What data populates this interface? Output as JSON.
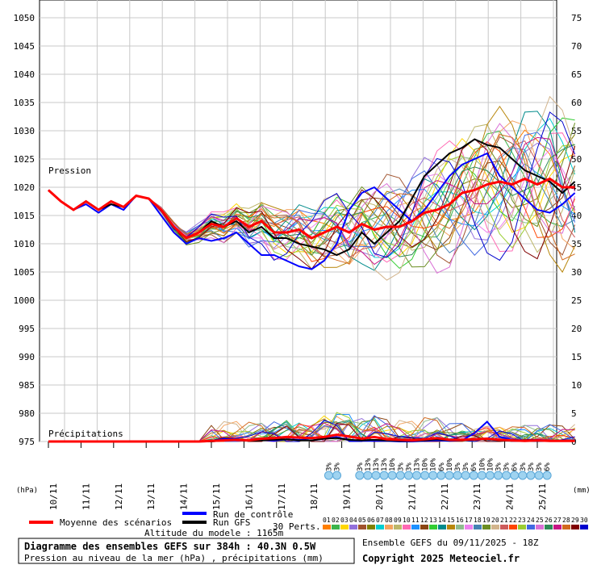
{
  "chart_data": {
    "type": "line",
    "title": "Diagramme des ensembles GEFS sur 384h : 40.3N 0.5W",
    "subtitle": "Pression au niveau de la mer (hPa) , précipitations (mm)",
    "y_left_unit": "(hPa)",
    "y_right_unit": "(mm)",
    "y_left_ticks": [
      975,
      980,
      985,
      990,
      995,
      1000,
      1005,
      1010,
      1015,
      1020,
      1025,
      1030,
      1035,
      1040,
      1045,
      1050
    ],
    "y_right_ticks": [
      0,
      5,
      10,
      15,
      20,
      25,
      30,
      35,
      40,
      45,
      50,
      55,
      60,
      65,
      70,
      75
    ],
    "y_left_range": [
      975,
      1050
    ],
    "y_right_range": [
      0,
      75
    ],
    "x_date_labels": [
      "10/11",
      "11/11",
      "12/11",
      "13/11",
      "14/11",
      "15/11",
      "16/11",
      "17/11",
      "18/11",
      "19/11",
      "20/11",
      "21/11",
      "22/11",
      "23/11",
      "24/11",
      "25/11"
    ],
    "pressure_label": "Pression",
    "precip_label": "Précipitations",
    "grid": true,
    "series": [
      {
        "name": "Moyenne des scénarios",
        "color": "#ff0000",
        "values": [
          1019.5,
          1017.5,
          1016,
          1017.5,
          1016,
          1017.5,
          1016.5,
          1018.5,
          1018,
          1016,
          1013,
          1011,
          1012,
          1013.5,
          1013,
          1014.5,
          1013,
          1014,
          1012,
          1012,
          1012.5,
          1011,
          1012,
          1013,
          1012,
          1013.5,
          1012.5,
          1013,
          1013,
          1014,
          1015.5,
          1016,
          1017,
          1019,
          1019.5,
          1020.5,
          1021,
          1020.5,
          1021.5,
          1020.5,
          1021.5,
          1020,
          1020
        ],
        "precip": [
          0,
          0,
          0,
          0,
          0,
          0,
          0,
          0,
          0,
          0,
          0,
          0,
          0,
          0.1,
          0.2,
          0.3,
          0.2,
          0.5,
          0.6,
          0.8,
          0.7,
          0.6,
          0.8,
          1.2,
          0.9,
          0.5,
          0.8,
          0.4,
          0.3,
          0.2,
          0.4,
          0.6,
          0.3,
          0.3,
          0.4,
          0.5,
          0.3,
          0.2,
          0.1,
          0.2,
          0.1,
          0.1,
          0.1
        ]
      },
      {
        "name": "Run de contrôle",
        "color": "#0000ff",
        "values": [
          1019.5,
          1017.5,
          1016,
          1017,
          1015.5,
          1017,
          1016,
          1018.5,
          1018,
          1015,
          1012,
          1010,
          1011,
          1010.5,
          1011,
          1012,
          1010,
          1008,
          1008,
          1007,
          1006,
          1005.5,
          1007,
          1010,
          1016,
          1019,
          1020,
          1018,
          1016,
          1014,
          1016,
          1019,
          1022,
          1024,
          1025,
          1026,
          1022,
          1020,
          1018,
          1016,
          1015.5,
          1017,
          1019
        ],
        "precip": [
          0,
          0,
          0,
          0,
          0,
          0,
          0,
          0,
          0,
          0,
          0,
          0,
          0,
          0,
          0.5,
          0.3,
          0.2,
          0.3,
          0.1,
          0.4,
          0.3,
          0.2,
          0.5,
          0.8,
          0.2,
          0.1,
          0.1,
          0.1,
          0,
          0,
          0.1,
          0.2,
          0.1,
          0.2,
          1.5,
          3.5,
          0.8,
          0.3,
          0.2,
          0.3,
          0.2,
          0.1,
          0.1
        ]
      },
      {
        "name": "Run GFS",
        "color": "#000000",
        "values": [
          1019.5,
          1017.5,
          1016,
          1017.5,
          1016,
          1017,
          1016.5,
          1018.5,
          1018,
          1016,
          1013,
          1011,
          1012,
          1014,
          1013,
          1014,
          1012,
          1013,
          1011,
          1011,
          1010,
          1009.5,
          1009,
          1008,
          1009,
          1012,
          1010,
          1012,
          1014,
          1018,
          1022,
          1024,
          1026,
          1027,
          1028.5,
          1027.5,
          1027,
          1025,
          1023,
          1022,
          1021,
          1019,
          1021
        ],
        "precip": [
          0,
          0,
          0,
          0,
          0,
          0,
          0,
          0,
          0,
          0,
          0,
          0,
          0,
          0,
          0.2,
          0.3,
          0.1,
          0.2,
          0.3,
          0.4,
          0.2,
          0.2,
          0.5,
          0.6,
          0.3,
          0.2,
          0.3,
          0.2,
          0.1,
          0.1,
          0.2,
          0.4,
          0.2,
          0.2,
          0.3,
          0.4,
          0.2,
          0.1,
          0.1,
          0.1,
          0.1,
          0.1,
          0.1
        ]
      }
    ],
    "perturbations_label": "30 Perts.",
    "perturbation_ids": [
      "01",
      "02",
      "03",
      "04",
      "05",
      "06",
      "07",
      "08",
      "09",
      "10",
      "11",
      "12",
      "13",
      "14",
      "15",
      "16",
      "17",
      "18",
      "19",
      "20",
      "21",
      "22",
      "23",
      "24",
      "25",
      "26",
      "27",
      "28",
      "29",
      "30"
    ],
    "perturbation_colors": [
      "#ff7f00",
      "#3cb44b",
      "#ffd700",
      "#9370db",
      "#a0522d",
      "#808000",
      "#00ced1",
      "#f4a460",
      "#bdb76b",
      "#ff69b4",
      "#1e90ff",
      "#8b4513",
      "#32cd32",
      "#008b8b",
      "#b8860b",
      "#8fbc8f",
      "#ee82ee",
      "#4682b4",
      "#6b8e23",
      "#d2b48c",
      "#cd5c5c",
      "#ff4500",
      "#9acd32",
      "#4169e1",
      "#da70d6",
      "#2e8b57",
      "#c71585",
      "#d2691e",
      "#800000",
      "#0000cd"
    ],
    "snow_markers": [
      {
        "date_index": 8.6,
        "label": "3%"
      },
      {
        "date_index": 8.85,
        "label": "3%"
      },
      {
        "date_index": 9.55,
        "label": "3%"
      },
      {
        "date_index": 9.8,
        "label": "13%"
      },
      {
        "date_index": 10.05,
        "label": "13%"
      },
      {
        "date_index": 10.3,
        "label": "13%"
      },
      {
        "date_index": 10.55,
        "label": "10%"
      },
      {
        "date_index": 10.8,
        "label": "3%"
      },
      {
        "date_index": 11.05,
        "label": "3%"
      },
      {
        "date_index": 11.3,
        "label": "13%"
      },
      {
        "date_index": 11.55,
        "label": "10%"
      },
      {
        "date_index": 11.8,
        "label": "10%"
      },
      {
        "date_index": 12.05,
        "label": "6%"
      },
      {
        "date_index": 12.3,
        "label": "10%"
      },
      {
        "date_index": 12.55,
        "label": "3%"
      },
      {
        "date_index": 12.8,
        "label": "3%"
      },
      {
        "date_index": 13.05,
        "label": "6%"
      },
      {
        "date_index": 13.3,
        "label": "10%"
      },
      {
        "date_index": 13.55,
        "label": "10%"
      },
      {
        "date_index": 13.8,
        "label": "3%"
      },
      {
        "date_index": 14.05,
        "label": "3%"
      },
      {
        "date_index": 14.3,
        "label": "6%"
      },
      {
        "date_index": 14.55,
        "label": "3%"
      },
      {
        "date_index": 14.8,
        "label": "3%"
      },
      {
        "date_index": 15.05,
        "label": "3%"
      },
      {
        "date_index": 15.3,
        "label": "6%"
      }
    ]
  },
  "footer": {
    "altitude": "Altitude du modele : 1165m",
    "run_info": "Ensemble GEFS du 09/11/2025 - 18Z",
    "copyright": "Copyright 2025 Meteociel.fr"
  }
}
